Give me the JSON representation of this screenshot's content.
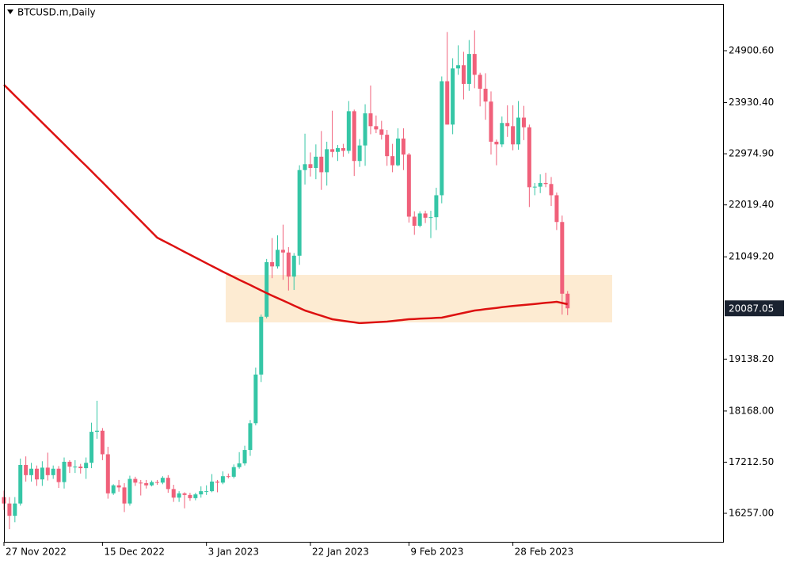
{
  "chart_data": {
    "type": "candlestick",
    "title": "BTCUSD.m,Daily",
    "categories": [
      "27 Nov 2022",
      null,
      null,
      null,
      null,
      null,
      null,
      null,
      null,
      null,
      null,
      null,
      null,
      null,
      null,
      null,
      null,
      null,
      "15 Dec 2022",
      null,
      null,
      null,
      null,
      null,
      null,
      null,
      null,
      null,
      null,
      null,
      null,
      null,
      null,
      null,
      null,
      null,
      null,
      "3 Jan 2023",
      null,
      null,
      null,
      null,
      null,
      null,
      null,
      null,
      null,
      null,
      null,
      null,
      null,
      null,
      null,
      null,
      null,
      null,
      "22 Jan 2023",
      null,
      null,
      null,
      null,
      null,
      null,
      null,
      null,
      null,
      null,
      null,
      null,
      null,
      null,
      null,
      null,
      null,
      "9 Feb 2023",
      null,
      null,
      null,
      null,
      null,
      null,
      null,
      null,
      null,
      null,
      null,
      null,
      null,
      null,
      null,
      null,
      null,
      null,
      "28 Feb 2023",
      null,
      null,
      null,
      null,
      null,
      null,
      null,
      null,
      null,
      null
    ],
    "open": [
      16560,
      16440,
      16210,
      16440,
      17160,
      16970,
      17090,
      16890,
      17110,
      16970,
      17090,
      16840,
      17220,
      17130,
      17130,
      17100,
      17200,
      17780,
      17800,
      17360,
      16630,
      16780,
      16740,
      16440,
      16900,
      16830,
      16820,
      16780,
      16840,
      16830,
      16920,
      16710,
      16550,
      16630,
      16600,
      16540,
      16610,
      16670,
      16670,
      16850,
      16830,
      16950,
      16940,
      17120,
      17190,
      17440,
      17940,
      18850,
      19930,
      20950,
      20870,
      21180,
      21130,
      20680,
      21070,
      22670,
      22780,
      22710,
      22920,
      22630,
      23060,
      23010,
      23080,
      23030,
      23770,
      22840,
      23130,
      23730,
      23490,
      23430,
      23330,
      22930,
      22760,
      23260,
      22960,
      21800,
      21630,
      21860,
      21780,
      21790,
      22200,
      24330,
      23520,
      24570,
      24630,
      24280,
      24840,
      24450,
      24190,
      23950,
      23200,
      23150,
      23550,
      23490,
      23150,
      23650,
      23470,
      22350,
      22360,
      22430,
      22410,
      22200,
      21700,
      20360
    ],
    "high": [
      16680,
      16560,
      16560,
      17280,
      17320,
      17200,
      17150,
      17230,
      17390,
      17150,
      17140,
      17300,
      17250,
      17250,
      17180,
      17300,
      17950,
      18360,
      17850,
      17500,
      16800,
      16880,
      16820,
      16960,
      16940,
      16880,
      16880,
      16870,
      16880,
      16950,
      16970,
      16790,
      16670,
      16650,
      16640,
      16640,
      16760,
      16780,
      16990,
      16880,
      17040,
      17000,
      17170,
      17400,
      17520,
      18000,
      18980,
      19970,
      21010,
      21400,
      21450,
      21650,
      21230,
      21120,
      22760,
      23350,
      23000,
      23150,
      23400,
      23200,
      23780,
      23140,
      23160,
      23960,
      23800,
      23250,
      23900,
      24250,
      23690,
      23590,
      23420,
      23160,
      23450,
      23450,
      22990,
      21900,
      21900,
      21910,
      21910,
      22340,
      24420,
      25250,
      24760,
      25000,
      24880,
      25100,
      25280,
      24490,
      24480,
      24140,
      23240,
      23670,
      23880,
      23880,
      23960,
      23870,
      23520,
      22430,
      22590,
      22620,
      22540,
      22250,
      21820,
      20410
    ],
    "low": [
      16320,
      15960,
      16090,
      16400,
      16850,
      16850,
      16770,
      16770,
      16870,
      16900,
      16730,
      16720,
      17010,
      17010,
      17000,
      16900,
      17100,
      17650,
      17250,
      16530,
      16600,
      16660,
      16280,
      16400,
      16770,
      16590,
      16720,
      16760,
      16790,
      16800,
      16640,
      16470,
      16470,
      16350,
      16490,
      16500,
      16550,
      16600,
      16650,
      16650,
      16800,
      16910,
      16910,
      17090,
      17150,
      17330,
      17900,
      18710,
      19900,
      20650,
      20830,
      20620,
      20420,
      20430,
      20900,
      22400,
      22550,
      22500,
      22300,
      22380,
      22910,
      22840,
      22920,
      22980,
      22560,
      22730,
      22750,
      23340,
      23360,
      23240,
      22750,
      22630,
      22740,
      22670,
      21690,
      21460,
      21600,
      21680,
      21400,
      21550,
      22050,
      23520,
      23340,
      24450,
      23990,
      24150,
      24200,
      23860,
      23610,
      22960,
      22760,
      23100,
      23290,
      23040,
      23050,
      23230,
      21980,
      22200,
      22240,
      22350,
      22000,
      21550,
      19970,
      19960
    ],
    "close": [
      16440,
      16210,
      16440,
      17160,
      16970,
      17090,
      16890,
      17110,
      16970,
      17090,
      16840,
      17220,
      17130,
      17130,
      17100,
      17200,
      17780,
      17800,
      17360,
      16630,
      16780,
      16740,
      16440,
      16900,
      16830,
      16820,
      16780,
      16840,
      16830,
      16920,
      16710,
      16550,
      16630,
      16600,
      16540,
      16610,
      16670,
      16670,
      16850,
      16830,
      16950,
      16940,
      17120,
      17190,
      17440,
      17940,
      18850,
      19930,
      20950,
      20870,
      21180,
      21130,
      20680,
      21070,
      22670,
      22780,
      22710,
      22920,
      22630,
      23060,
      23010,
      23080,
      23030,
      23770,
      22840,
      23130,
      23730,
      23490,
      23430,
      23330,
      22930,
      22760,
      23260,
      22960,
      21800,
      21630,
      21860,
      21780,
      21790,
      22200,
      24330,
      23520,
      24570,
      24630,
      24280,
      24840,
      24450,
      24190,
      23950,
      23200,
      23150,
      23550,
      23490,
      23150,
      23650,
      23470,
      22350,
      22360,
      22430,
      22410,
      22200,
      21700,
      20360,
      20087.05
    ],
    "up_color": "#35c6a6",
    "down_color": "#f0607a",
    "moving_average": {
      "color": "#dd1111",
      "values": [
        24264,
        24163,
        24062,
        23961,
        23860,
        23759,
        23657,
        23556,
        23455,
        23354,
        23253,
        23152,
        23051,
        22950,
        22849,
        22748,
        22646,
        22545,
        22444,
        22340,
        22237,
        22133,
        22030,
        21926,
        21822,
        21719,
        21615,
        21512,
        21408,
        21355,
        21302,
        21249,
        21196,
        21142,
        21089,
        21036,
        20983,
        20930,
        20877,
        20824,
        20771,
        20721,
        20671,
        20621,
        20571,
        20522,
        20472,
        20422,
        20372,
        20325,
        20279,
        20232,
        20186,
        20139,
        20093,
        20046,
        20013,
        19981,
        19948,
        19916,
        19883,
        19868,
        19854,
        19839,
        19825,
        19810,
        19816,
        19822,
        19827,
        19833,
        19839,
        19850,
        19861,
        19872,
        19883,
        19888,
        19893,
        19898,
        19903,
        19908,
        19913,
        19935,
        19957,
        19979,
        20002,
        20024,
        20046,
        20058,
        20071,
        20083,
        20095,
        20108,
        20120,
        20130,
        20140,
        20150,
        20159,
        20169,
        20179,
        20189,
        20199,
        20209,
        20187,
        20165
      ]
    },
    "zone": {
      "from": 19824,
      "to": 20712,
      "color": "#fdebd2"
    },
    "ylim": [
      15724.2,
      25773.9
    ],
    "yticks": [
      {
        "value": 24900.6,
        "label": "24900.60"
      },
      {
        "value": 23930.4,
        "label": "23930.40"
      },
      {
        "value": 22974.9,
        "label": "22974.90"
      },
      {
        "value": 22019.4,
        "label": "22019.40"
      },
      {
        "value": 21049.2,
        "label": "21049.20"
      },
      {
        "value": 19138.2,
        "label": "19138.20"
      },
      {
        "value": 18168,
        "label": "18168.00"
      },
      {
        "value": 17212.5,
        "label": "17212.50"
      },
      {
        "value": 16257,
        "label": "16257.00"
      }
    ],
    "current_price": 20087.05
  }
}
